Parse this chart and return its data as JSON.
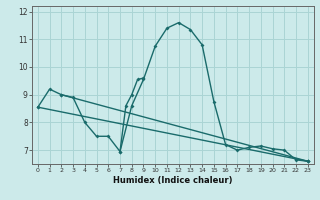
{
  "xlabel": "Humidex (Indice chaleur)",
  "background_color": "#cceaea",
  "grid_color": "#aad4d4",
  "line_color": "#1a6b6b",
  "xlim": [
    -0.5,
    23.5
  ],
  "ylim": [
    6.5,
    12.2
  ],
  "xticks": [
    0,
    1,
    2,
    3,
    4,
    5,
    6,
    7,
    8,
    9,
    10,
    11,
    12,
    13,
    14,
    15,
    16,
    17,
    18,
    19,
    20,
    21,
    22,
    23
  ],
  "yticks": [
    7,
    8,
    9,
    10,
    11,
    12
  ],
  "curve1_x": [
    0,
    1,
    2,
    3,
    4,
    5,
    6,
    7,
    8,
    9,
    10,
    11,
    12,
    13,
    14,
    15,
    16,
    17,
    18,
    19,
    20,
    21,
    22,
    23
  ],
  "curve1_y": [
    8.55,
    9.2,
    9.0,
    8.9,
    8.0,
    7.5,
    7.5,
    6.95,
    8.6,
    9.55,
    10.75,
    11.4,
    11.6,
    11.35,
    10.8,
    8.75,
    7.2,
    7.0,
    7.1,
    7.15,
    7.05,
    7.0,
    6.65,
    6.6
  ],
  "curve2_x": [
    7,
    7.5,
    8,
    8.5,
    9
  ],
  "curve2_y": [
    6.95,
    8.6,
    9.0,
    9.55,
    9.6
  ],
  "line1_x": [
    0,
    23
  ],
  "line1_y": [
    8.55,
    6.6
  ],
  "line2_x": [
    2,
    23
  ],
  "line2_y": [
    9.0,
    6.6
  ]
}
